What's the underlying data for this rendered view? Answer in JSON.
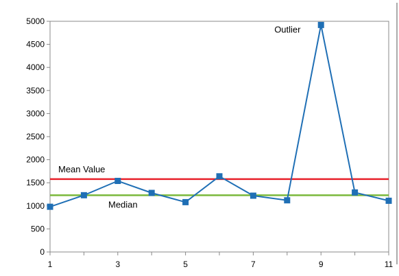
{
  "chart_data": {
    "type": "line",
    "title": "",
    "xlabel": "",
    "ylabel": "",
    "x": [
      1,
      2,
      3,
      4,
      5,
      6,
      7,
      8,
      9,
      10,
      11
    ],
    "x_ticks": [
      1,
      3,
      5,
      7,
      9,
      11
    ],
    "xlim": [
      1,
      11
    ],
    "ylim": [
      0,
      5000
    ],
    "y_ticks": [
      0,
      500,
      1000,
      1500,
      2000,
      2500,
      3000,
      3500,
      4000,
      4500,
      5000
    ],
    "grid": false,
    "series": [
      {
        "values": [
          980,
          1230,
          1540,
          1280,
          1080,
          1640,
          1220,
          1120,
          4920,
          1290,
          1110
        ],
        "color": "#1f6fb5",
        "marker": "square"
      }
    ],
    "reference_lines": [
      {
        "label": "Mean Value",
        "value": 1580,
        "color": "#e8202a"
      },
      {
        "label": "Median",
        "value": 1230,
        "color": "#7ab83a"
      }
    ],
    "annotations": [
      {
        "text": "Outlier",
        "x": 9,
        "y": 4920
      }
    ]
  }
}
